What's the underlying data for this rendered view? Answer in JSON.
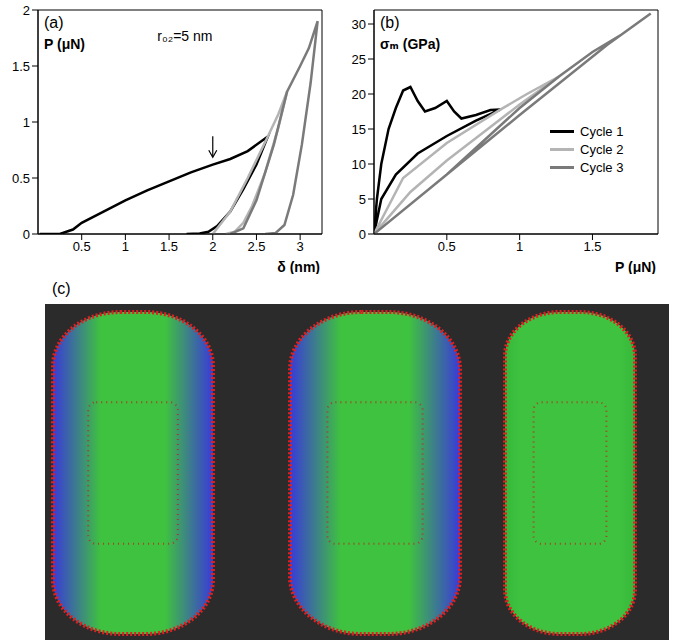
{
  "chart_data": [
    {
      "type": "line",
      "title": "(a)",
      "xlabel": "δ (nm)",
      "ylabel": "P (μN)",
      "annotations": [
        {
          "text": "r₀₂=5 nm"
        }
      ],
      "arrow_at": {
        "x": 2.0,
        "y": 0.64
      },
      "xlim": [
        0,
        3.25
      ],
      "xticks": [
        0.5,
        1,
        1.5,
        2,
        2.5,
        3
      ],
      "ylim": [
        0,
        2
      ],
      "yticks": [
        0,
        0.5,
        1,
        1.5,
        2
      ],
      "series": [
        {
          "name": "Cycle 1",
          "color": "#000000",
          "x": [
            0.02,
            0.25,
            0.4,
            0.5,
            0.75,
            1,
            1.25,
            1.5,
            1.75,
            2,
            2.2,
            2.4,
            2.63,
            2.5,
            2.35,
            2.2,
            2.05,
            1.95,
            1.85,
            1.7
          ],
          "values": [
            0,
            0,
            0.04,
            0.1,
            0.2,
            0.3,
            0.39,
            0.47,
            0.55,
            0.62,
            0.67,
            0.74,
            0.87,
            0.62,
            0.4,
            0.2,
            0.07,
            0.02,
            0.005,
            0
          ]
        },
        {
          "name": "Cycle 2",
          "color": "#b4b4b4",
          "x": [
            2.0,
            2.2,
            2.4,
            2.63,
            2.75,
            2.85,
            2.75,
            2.6,
            2.45,
            2.35,
            2.25,
            2.15
          ],
          "values": [
            0,
            0.2,
            0.5,
            0.87,
            1.07,
            1.27,
            0.95,
            0.55,
            0.25,
            0.1,
            0.02,
            0
          ]
        },
        {
          "name": "Cycle 3",
          "color": "#7a7a7a",
          "x": [
            2.2,
            2.35,
            2.5,
            2.7,
            2.85,
            3.0,
            3.1,
            3.2,
            3.12,
            3.02,
            2.92,
            2.82,
            2.72,
            2.6
          ],
          "values": [
            0,
            0.05,
            0.3,
            0.8,
            1.27,
            1.5,
            1.66,
            1.9,
            1.35,
            0.8,
            0.35,
            0.08,
            0.01,
            0
          ]
        }
      ]
    },
    {
      "type": "line",
      "title": "(b)",
      "xlabel": "P (μN)",
      "ylabel": "σₘ (GPa)",
      "legend": "right",
      "xlim": [
        0,
        1.95
      ],
      "xticks": [
        0.5,
        1,
        1.5
      ],
      "ylim": [
        0,
        32
      ],
      "yticks": [
        0,
        5,
        10,
        15,
        20,
        25,
        30
      ],
      "series": [
        {
          "name": "Cycle 1",
          "color": "#000000",
          "x": [
            0,
            0.02,
            0.05,
            0.1,
            0.15,
            0.2,
            0.25,
            0.3,
            0.35,
            0.42,
            0.5,
            0.55,
            0.6,
            0.7,
            0.8,
            0.87,
            0.7,
            0.5,
            0.3,
            0.15,
            0.05,
            0
          ],
          "values": [
            0,
            5,
            10,
            15,
            18,
            20.5,
            21,
            19,
            17.5,
            18,
            19,
            17.5,
            16.5,
            17,
            17.7,
            17.8,
            16.2,
            14,
            11.5,
            8.5,
            5,
            0
          ]
        },
        {
          "name": "Cycle 2",
          "color": "#b4b4b4",
          "x": [
            0,
            0.2,
            0.5,
            0.87,
            1.05,
            1.27,
            1.0,
            0.75,
            0.5,
            0.25,
            0
          ],
          "values": [
            0,
            8,
            13,
            17.8,
            20,
            22.5,
            18.5,
            14.5,
            10.5,
            6,
            0
          ]
        },
        {
          "name": "Cycle 3",
          "color": "#7a7a7a",
          "x": [
            0,
            0.5,
            1,
            1.27,
            1.5,
            1.7,
            1.9,
            1.6,
            1.3,
            1.0,
            0.5,
            0
          ],
          "values": [
            0,
            8.5,
            18,
            22.5,
            26,
            28.5,
            31.5,
            27,
            22,
            17,
            8.5,
            0
          ]
        }
      ]
    }
  ],
  "image_panel": {
    "label": "(c)"
  }
}
